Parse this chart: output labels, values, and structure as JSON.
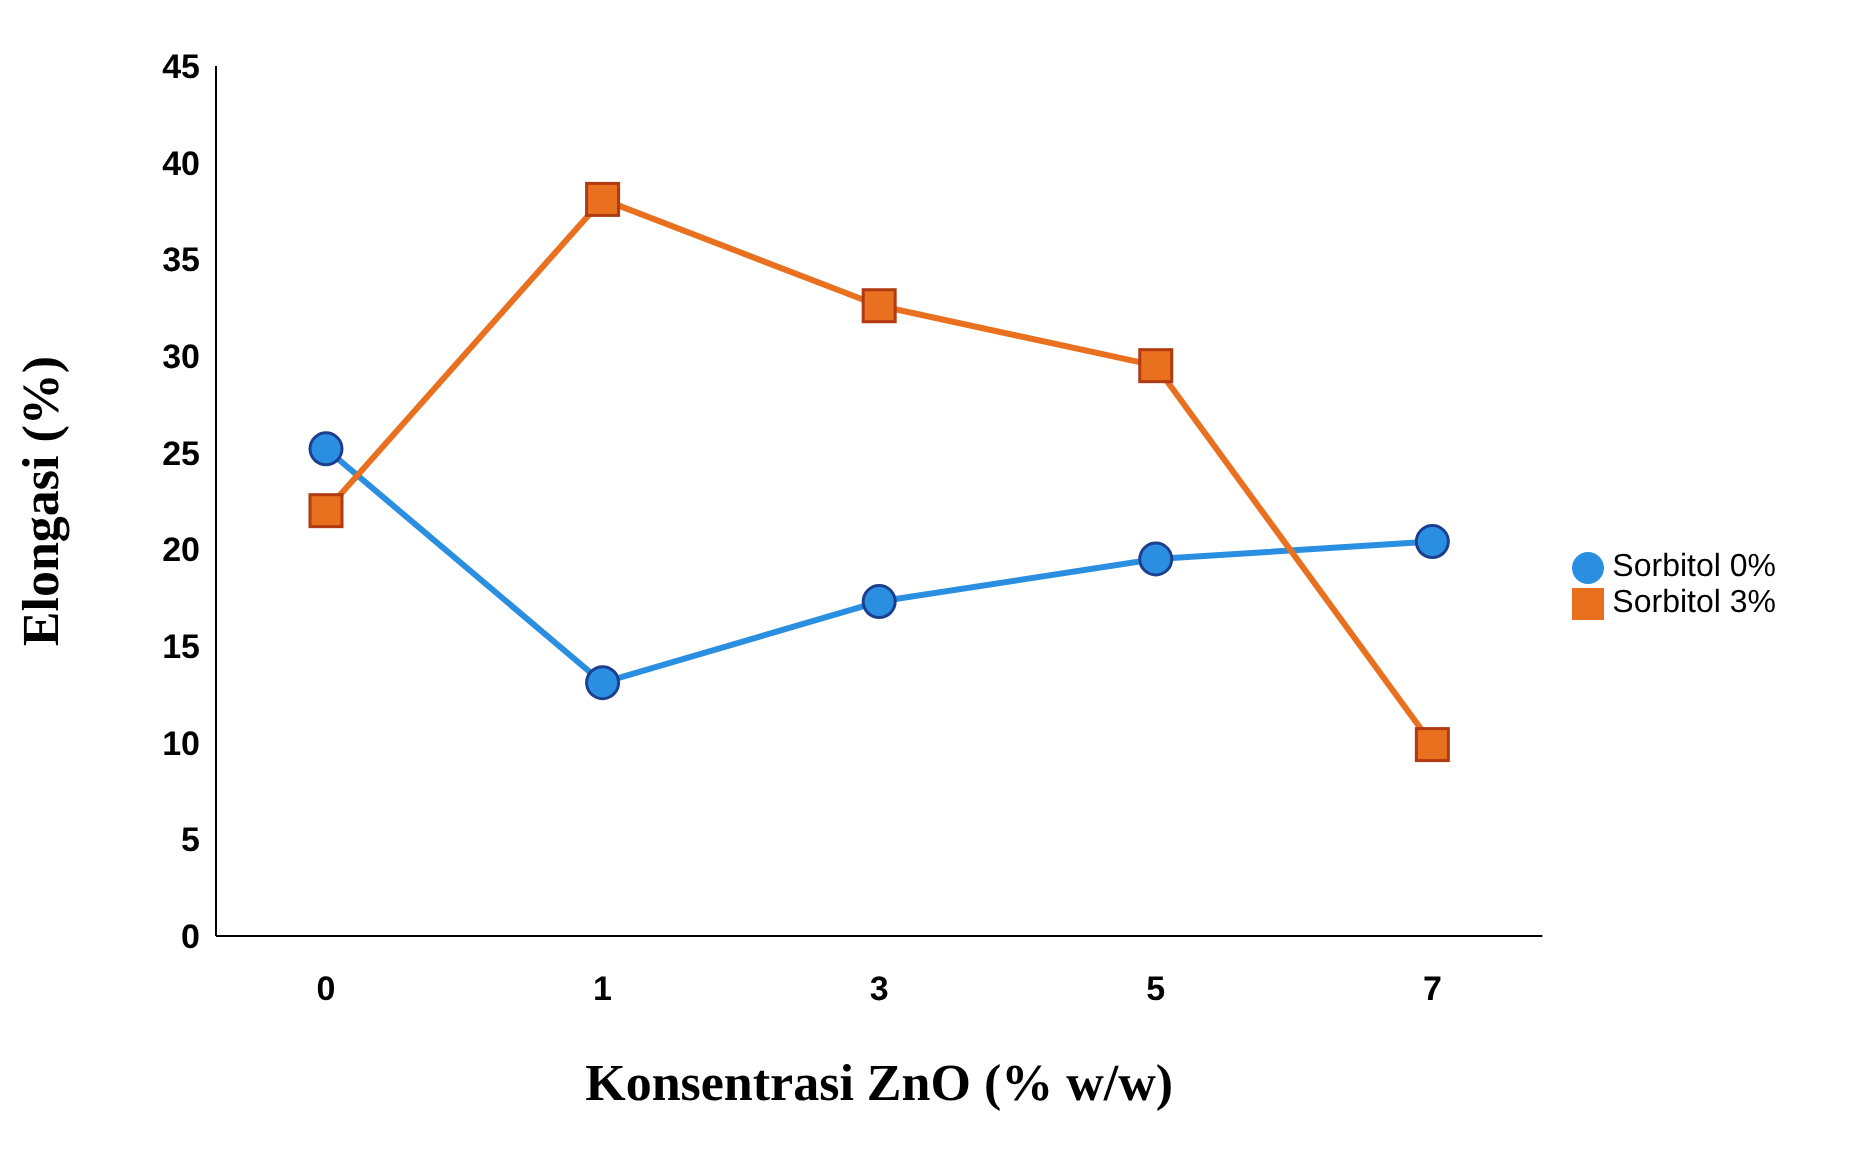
{
  "chart_data": {
    "type": "line",
    "xlabel": "Konsentrasi ZnO (% w/w)",
    "ylabel": "Elongasi (%)",
    "categories": [
      "0",
      "1",
      "3",
      "5",
      "7"
    ],
    "series": [
      {
        "name": "Sorbitol 0%",
        "color": "#2a8fe0",
        "marker": "circle",
        "values": [
          25.2,
          13.1,
          17.3,
          19.5,
          20.4
        ]
      },
      {
        "name": "Sorbitol 3%",
        "color": "#e8701e",
        "marker": "square",
        "values": [
          22.0,
          38.1,
          32.6,
          29.5,
          9.9
        ]
      }
    ],
    "ylim": [
      0,
      45
    ],
    "yticks": [
      0,
      5,
      10,
      15,
      20,
      25,
      30,
      35,
      40,
      45
    ],
    "grid": false,
    "legend": "right"
  }
}
